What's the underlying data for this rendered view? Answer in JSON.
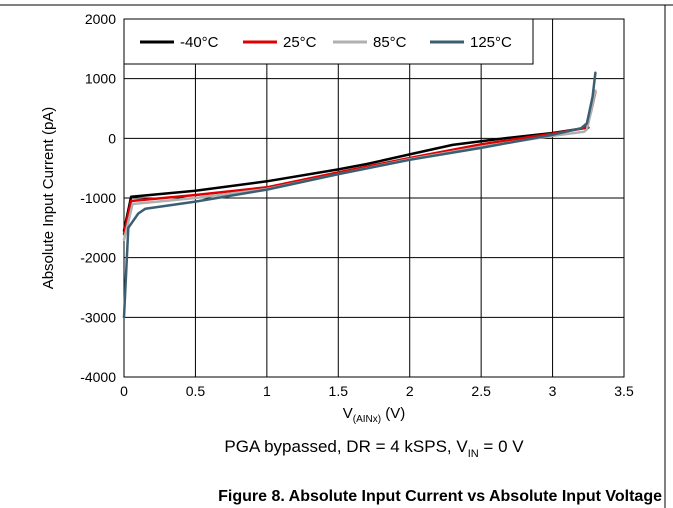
{
  "chart_data": {
    "type": "line",
    "xlabel": "V",
    "xlabel_sub": "(AINx)",
    "xlabel_unit": " (V)",
    "ylabel": "Absolute Input Current (pA)",
    "xlim": [
      0,
      3.5
    ],
    "ylim": [
      -4000,
      2000
    ],
    "xticks": [
      0,
      0.5,
      1,
      1.5,
      2,
      2.5,
      3,
      3.5
    ],
    "xtick_labels": [
      "0",
      "0.5",
      "1",
      "1.5",
      "2",
      "2.5",
      "3",
      "3.5"
    ],
    "yticks": [
      -4000,
      -3000,
      -2000,
      -1000,
      0,
      1000,
      2000
    ],
    "ytick_labels": [
      "-4000",
      "-3000",
      "-2000",
      "-1000",
      "0",
      "1000",
      "2000"
    ],
    "grid": true,
    "legend_position": "top",
    "series": [
      {
        "name": "-40°C",
        "color": "#000000",
        "x": [
          0.0,
          0.05,
          0.5,
          1.0,
          1.5,
          1.7,
          2.0,
          2.3,
          2.5,
          2.7,
          3.0,
          3.22,
          3.25
        ],
        "y": [
          -1550,
          -980,
          -880,
          -720,
          -520,
          -430,
          -270,
          -110,
          -50,
          10,
          90,
          170,
          180
        ]
      },
      {
        "name": "25°C",
        "color": "#e00000",
        "x": [
          0.0,
          0.05,
          0.5,
          1.0,
          1.5,
          2.0,
          2.5,
          3.0,
          3.22,
          3.24,
          3.27,
          3.3
        ],
        "y": [
          -1600,
          -1050,
          -950,
          -820,
          -570,
          -330,
          -100,
          80,
          170,
          230,
          450,
          780
        ]
      },
      {
        "name": "85°C",
        "color": "#b0b0b0",
        "x": [
          0.0,
          0.06,
          0.5,
          1.0,
          1.5,
          2.0,
          2.5,
          3.0,
          3.22,
          3.24,
          3.27,
          3.3
        ],
        "y": [
          -1700,
          -1100,
          -1000,
          -850,
          -600,
          -350,
          -140,
          40,
          110,
          150,
          450,
          800
        ]
      },
      {
        "name": "125°C",
        "color": "#3a5f72",
        "x": [
          0.0,
          0.03,
          0.1,
          0.15,
          0.5,
          1.0,
          1.5,
          2.0,
          2.5,
          3.0,
          3.2,
          3.24,
          3.28,
          3.3
        ],
        "y": [
          -3000,
          -1500,
          -1260,
          -1180,
          -1060,
          -860,
          -600,
          -360,
          -160,
          60,
          170,
          250,
          700,
          1100
        ]
      }
    ],
    "caption_main": "PGA bypassed, DR = 4 kSPS, V",
    "caption_sub": "IN",
    "caption_tail": " = 0 V"
  },
  "figure_title": "Figure 8. Absolute Input Current vs Absolute Input Voltage"
}
